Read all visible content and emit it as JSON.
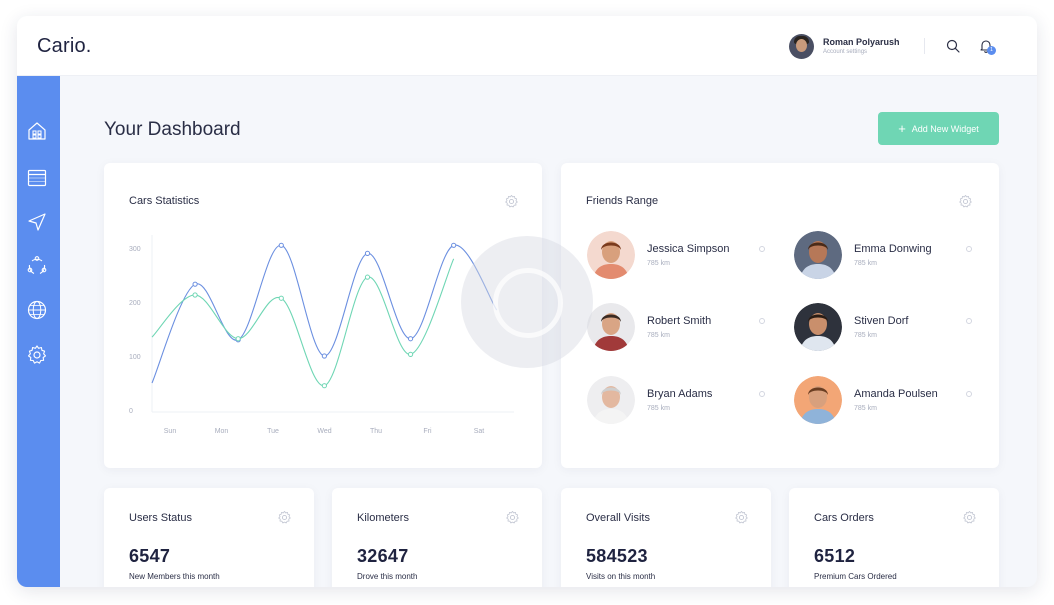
{
  "app": {
    "logo": "Cario."
  },
  "header": {
    "user_name": "Roman Polyarush",
    "user_sub": "Account settings",
    "notification_count": "1"
  },
  "sidebar": {
    "items": [
      {
        "icon": "home-icon"
      },
      {
        "icon": "calendar-icon"
      },
      {
        "icon": "navigation-icon"
      },
      {
        "icon": "network-icon"
      },
      {
        "icon": "globe-icon"
      },
      {
        "icon": "settings-icon"
      }
    ]
  },
  "page": {
    "title": "Your Dashboard",
    "add_widget_label": "Add New Widget"
  },
  "cars_statistics": {
    "title": "Cars Statistics"
  },
  "chart_data": {
    "type": "line",
    "title": "Cars Statistics",
    "categories": [
      "Sun",
      "Mon",
      "Tue",
      "Wed",
      "Thu",
      "Fri",
      "Sat"
    ],
    "y_ticks": [
      "0",
      "100",
      "200",
      "300"
    ],
    "ylim": [
      0,
      300
    ],
    "grid": false,
    "series": [
      {
        "color": "#6b8fe0",
        "points": [
          [
            0,
            50
          ],
          [
            1,
            233
          ],
          [
            2,
            130
          ],
          [
            3,
            305
          ],
          [
            4,
            100
          ],
          [
            5,
            290
          ],
          [
            6,
            132
          ],
          [
            7,
            305
          ],
          [
            8,
            185
          ]
        ]
      },
      {
        "color": "#6fd6b4",
        "points": [
          [
            0,
            135
          ],
          [
            1,
            213
          ],
          [
            2,
            132
          ],
          [
            3,
            207
          ],
          [
            4,
            45
          ],
          [
            5,
            246
          ],
          [
            6,
            103
          ],
          [
            7,
            280
          ]
        ]
      }
    ],
    "marker_points": [
      {
        "series": 0,
        "indices": [
          1,
          2,
          3,
          4,
          5,
          6,
          7
        ]
      },
      {
        "series": 1,
        "indices": [
          1,
          2,
          3,
          4,
          5,
          6
        ]
      }
    ]
  },
  "friends": {
    "title": "Friends Range",
    "items": [
      {
        "name": "Jessica Simpson",
        "distance": "785 km",
        "bg": "#f4d9cf",
        "skin": "#d8a07d",
        "hair": "#7a3b1e",
        "shirt": "#e38b6f"
      },
      {
        "name": "Emma Donwing",
        "distance": "785 km",
        "bg": "#5e6a80",
        "skin": "#b67858",
        "hair": "#4a2a18",
        "shirt": "#c9d4e6"
      },
      {
        "name": "Robert Smith",
        "distance": "785 km",
        "bg": "#e9e9ec",
        "skin": "#d9a585",
        "hair": "#3a2a22",
        "shirt": "#a13a3a"
      },
      {
        "name": "Stiven Dorf",
        "distance": "785 km",
        "bg": "#2e323c",
        "skin": "#c98f6c",
        "hair": "#2a1c14",
        "shirt": "#dfe6ef"
      },
      {
        "name": "Bryan Adams",
        "distance": "785 km",
        "bg": "#eeeef0",
        "skin": "#e3b8a0",
        "hair": "#cfcfcf",
        "shirt": "#f4f4f4"
      },
      {
        "name": "Amanda Poulsen",
        "distance": "785 km",
        "bg": "#f3a676",
        "skin": "#d8a07d",
        "hair": "#6b3e22",
        "shirt": "#8fb3d9"
      }
    ]
  },
  "stats": [
    {
      "title": "Users Status",
      "value": "6547",
      "sub": "New Members this month"
    },
    {
      "title": "Kilometers",
      "value": "32647",
      "sub": "Drove this month"
    },
    {
      "title": "Overall Visits",
      "value": "584523",
      "sub": "Visits on this month"
    },
    {
      "title": "Cars Orders",
      "value": "6512",
      "sub": "Premium Cars Ordered"
    }
  ],
  "colors": {
    "sidebar": "#5b8def",
    "accent_green": "#6fd6b4",
    "line_blue": "#6b8fe0",
    "line_green": "#6fd6b4"
  }
}
